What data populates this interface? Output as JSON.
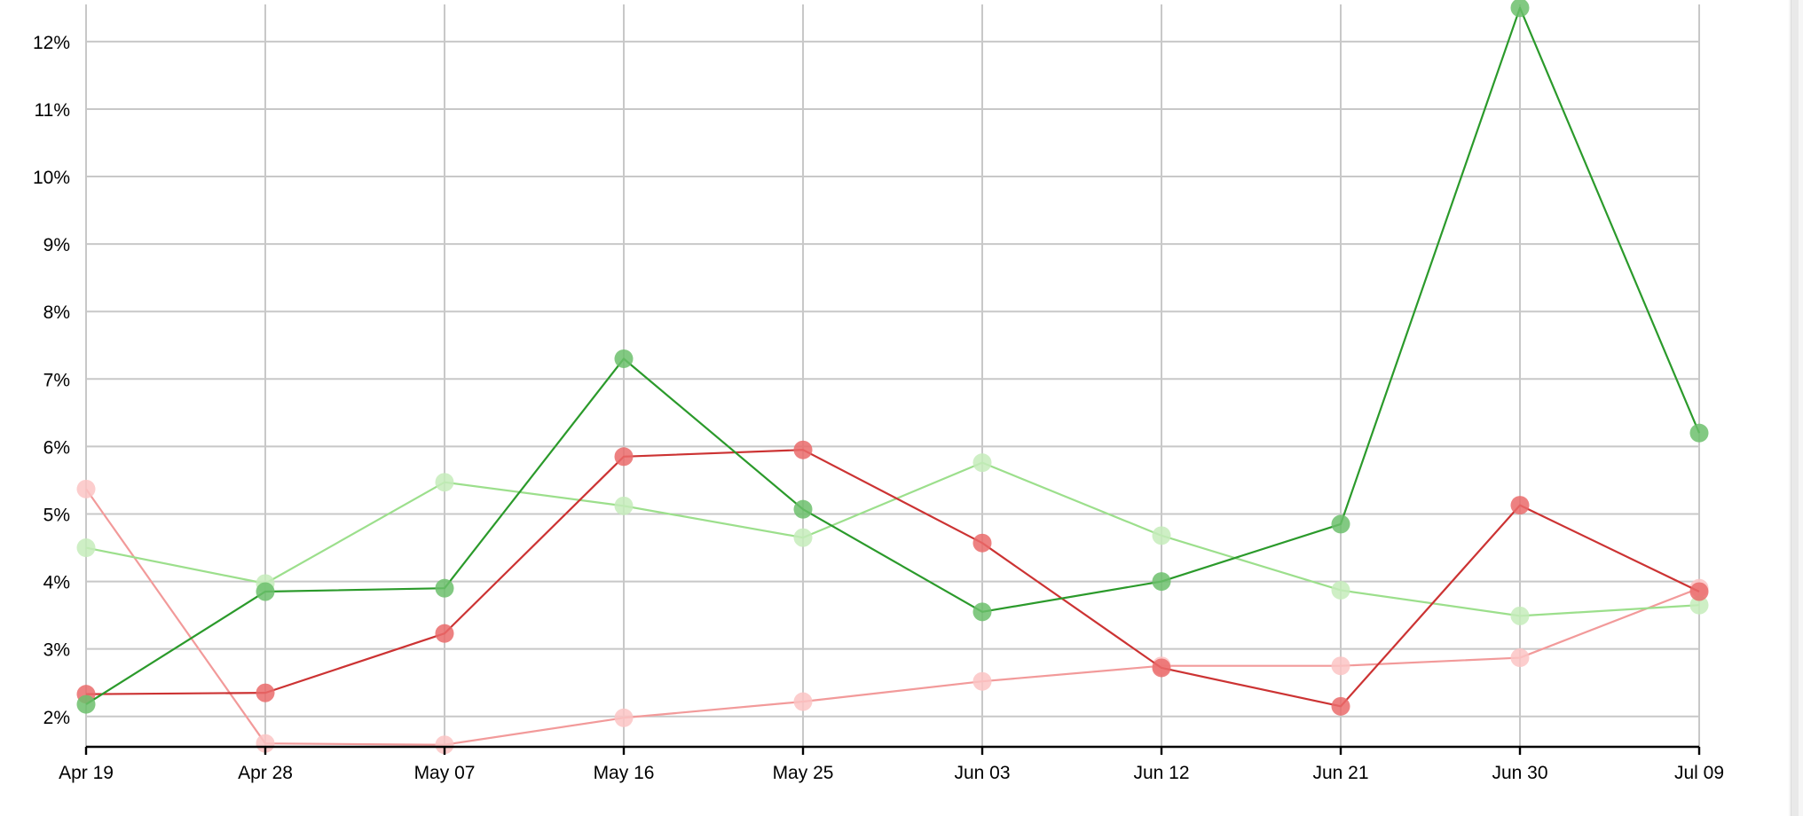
{
  "chart_data": {
    "type": "line",
    "x": [
      "Apr 19",
      "Apr 28",
      "May 07",
      "May 16",
      "May 25",
      "Jun 03",
      "Jun 12",
      "Jun 21",
      "Jun 30",
      "Jul 09"
    ],
    "ylim": [
      1.55,
      12.55
    ],
    "yticks": [
      "2%",
      "3%",
      "4%",
      "5%",
      "6%",
      "7%",
      "8%",
      "9%",
      "10%",
      "11%",
      "12%"
    ],
    "ytick_values": [
      2,
      3,
      4,
      5,
      6,
      7,
      8,
      9,
      10,
      11,
      12
    ],
    "grid": true,
    "series": [
      {
        "color": "#2b9a2b",
        "marker_color": "#6cc06c",
        "values": [
          2.18,
          3.85,
          3.9,
          7.3,
          5.07,
          3.55,
          4.0,
          4.85,
          12.5,
          6.2
        ]
      },
      {
        "color": "#cc3333",
        "marker_color": "#ea6b6b",
        "values": [
          2.33,
          2.35,
          3.23,
          5.85,
          5.95,
          4.57,
          2.72,
          2.15,
          5.13,
          3.85
        ]
      },
      {
        "color": "#9cdf8c",
        "marker_color": "#c5ecbb",
        "values": [
          4.5,
          3.97,
          5.47,
          5.12,
          4.65,
          5.76,
          4.68,
          3.87,
          3.49,
          3.65
        ]
      },
      {
        "color": "#f29a9a",
        "marker_color": "#fbc4c4",
        "values": [
          5.37,
          1.6,
          1.58,
          1.98,
          2.22,
          2.52,
          2.75,
          2.75,
          2.87,
          3.9
        ]
      }
    ]
  }
}
